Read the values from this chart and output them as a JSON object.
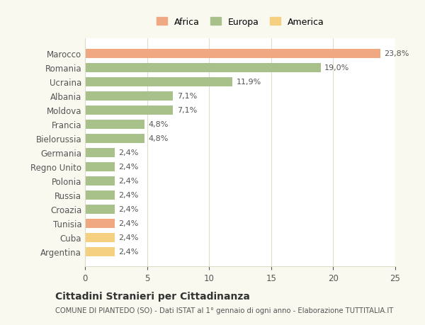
{
  "categories": [
    "Marocco",
    "Romania",
    "Ucraina",
    "Albania",
    "Moldova",
    "Francia",
    "Bielorussia",
    "Germania",
    "Regno Unito",
    "Polonia",
    "Russia",
    "Croazia",
    "Tunisia",
    "Cuba",
    "Argentina"
  ],
  "values": [
    23.8,
    19.0,
    11.9,
    7.1,
    7.1,
    4.8,
    4.8,
    2.4,
    2.4,
    2.4,
    2.4,
    2.4,
    2.4,
    2.4,
    2.4
  ],
  "labels": [
    "23,8%",
    "19,0%",
    "11,9%",
    "7,1%",
    "7,1%",
    "4,8%",
    "4,8%",
    "2,4%",
    "2,4%",
    "2,4%",
    "2,4%",
    "2,4%",
    "2,4%",
    "2,4%",
    "2,4%"
  ],
  "colors": [
    "#F0A883",
    "#A8C08A",
    "#A8C08A",
    "#A8C08A",
    "#A8C08A",
    "#A8C08A",
    "#A8C08A",
    "#A8C08A",
    "#A8C08A",
    "#A8C08A",
    "#A8C08A",
    "#A8C08A",
    "#F0A883",
    "#F5D080",
    "#F5D080"
  ],
  "legend": [
    {
      "label": "Africa",
      "color": "#F0A883"
    },
    {
      "label": "Europa",
      "color": "#A8C08A"
    },
    {
      "label": "America",
      "color": "#F5D080"
    }
  ],
  "title": "Cittadini Stranieri per Cittadinanza",
  "subtitle": "COMUNE DI PIANTEDO (SO) - Dati ISTAT al 1° gennaio di ogni anno - Elaborazione TUTTITALIA.IT",
  "xlim": [
    0,
    25
  ],
  "xticks": [
    0,
    5,
    10,
    15,
    20,
    25
  ],
  "background_color": "#f9f9f0",
  "bar_background": "#ffffff",
  "grid_color": "#ddddcc"
}
